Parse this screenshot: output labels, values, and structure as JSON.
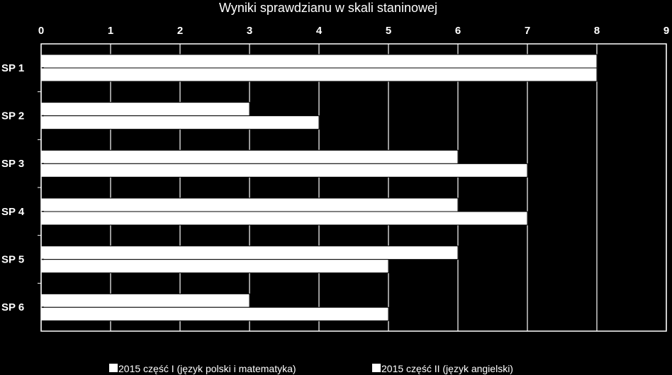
{
  "chart_data": {
    "type": "bar",
    "orientation": "horizontal",
    "title": "Wyniki sprawdzianu w skali staninowej",
    "xlim": [
      0,
      9
    ],
    "x_ticks": [
      "0",
      "1",
      "2",
      "3",
      "4",
      "5",
      "6",
      "7",
      "8",
      "9"
    ],
    "categories": [
      "SP 1",
      "SP 2",
      "SP 3",
      "SP 4",
      "SP 5",
      "SP 6"
    ],
    "series": [
      {
        "name": "2015 część I (język polski i matematyka)",
        "values": [
          8,
          3,
          6,
          6,
          6,
          3
        ]
      },
      {
        "name": "2015 część II (język angielski)",
        "values": [
          8,
          4,
          7,
          7,
          5,
          5
        ]
      }
    ],
    "axis_position": "top",
    "grid": true,
    "legend_position": "bottom",
    "colors": {
      "background": "#000000",
      "bar": "#ffffff",
      "text": "#ffffff"
    }
  }
}
